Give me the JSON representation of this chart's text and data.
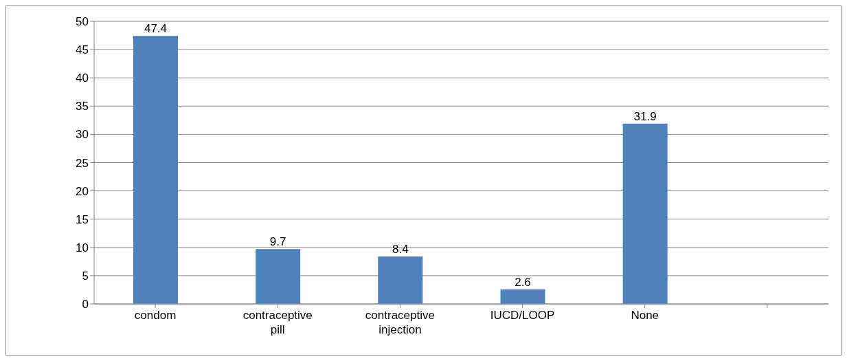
{
  "chart_data": {
    "type": "bar",
    "categories": [
      "condom",
      "contraceptive pill",
      "contraceptive injection",
      "IUCD/LOOP",
      "None",
      null
    ],
    "values": [
      47.4,
      9.7,
      8.4,
      2.6,
      31.9,
      null
    ],
    "color": "#4f81bd",
    "ylim": [
      0,
      50
    ],
    "yticks": [
      0,
      5,
      10,
      15,
      20,
      25,
      30,
      35,
      40,
      45,
      50
    ],
    "grid": "y",
    "data_labels": true
  }
}
